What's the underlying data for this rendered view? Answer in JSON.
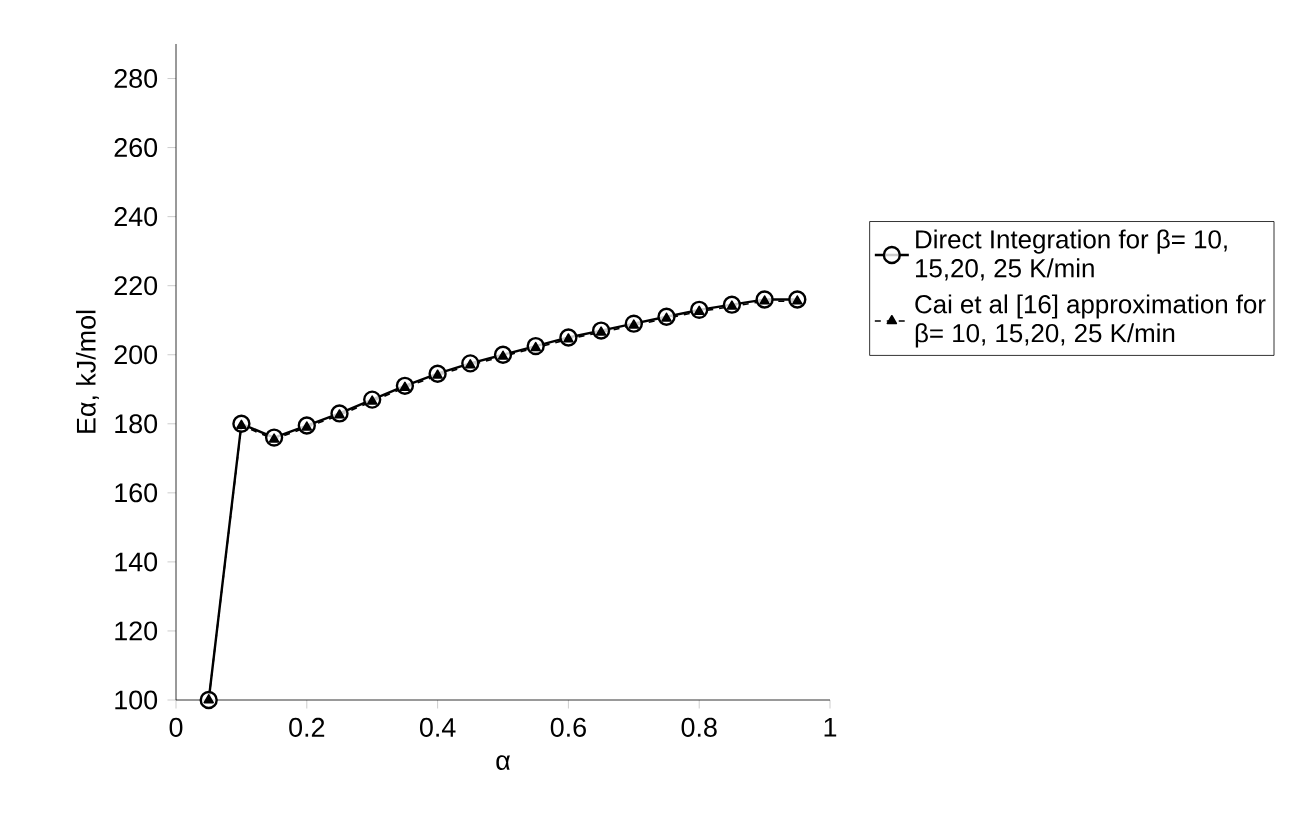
{
  "chart_data": {
    "type": "line",
    "xlabel": "α",
    "ylabel": "Eα,  kJ/mol",
    "x": [
      0.05,
      0.1,
      0.15,
      0.2,
      0.25,
      0.3,
      0.35,
      0.4,
      0.45,
      0.5,
      0.55,
      0.6,
      0.65,
      0.7,
      0.75,
      0.8,
      0.85,
      0.9,
      0.95
    ],
    "series": [
      {
        "name": "Direct Integration for β= 10, 15,20, 25 K/min",
        "color": "#000000",
        "marker": "circle",
        "line_style": "solid",
        "values": [
          100,
          180,
          176,
          179.5,
          183,
          187,
          191,
          194.5,
          197.5,
          200,
          202.5,
          205,
          207,
          209,
          211,
          213,
          214.5,
          216,
          216
        ]
      },
      {
        "name": "Cai et al [16] approximation for β= 10, 15,20, 25 K/min",
        "color": "#000000",
        "marker": "triangle",
        "line_style": "dashed",
        "values": [
          100,
          179.5,
          175.5,
          179,
          182.5,
          186.5,
          190.5,
          194,
          197,
          199.5,
          202,
          204.5,
          206.5,
          208.5,
          210.5,
          212.5,
          214,
          215.5,
          215.5
        ]
      }
    ],
    "xlim": [
      0,
      1
    ],
    "ylim": [
      100,
      290
    ],
    "xticks": [
      0,
      0.2,
      0.4,
      0.6,
      0.8,
      1
    ],
    "yticks": [
      100,
      120,
      140,
      160,
      180,
      200,
      220,
      240,
      260,
      280
    ],
    "grid": false,
    "legend": "right"
  }
}
